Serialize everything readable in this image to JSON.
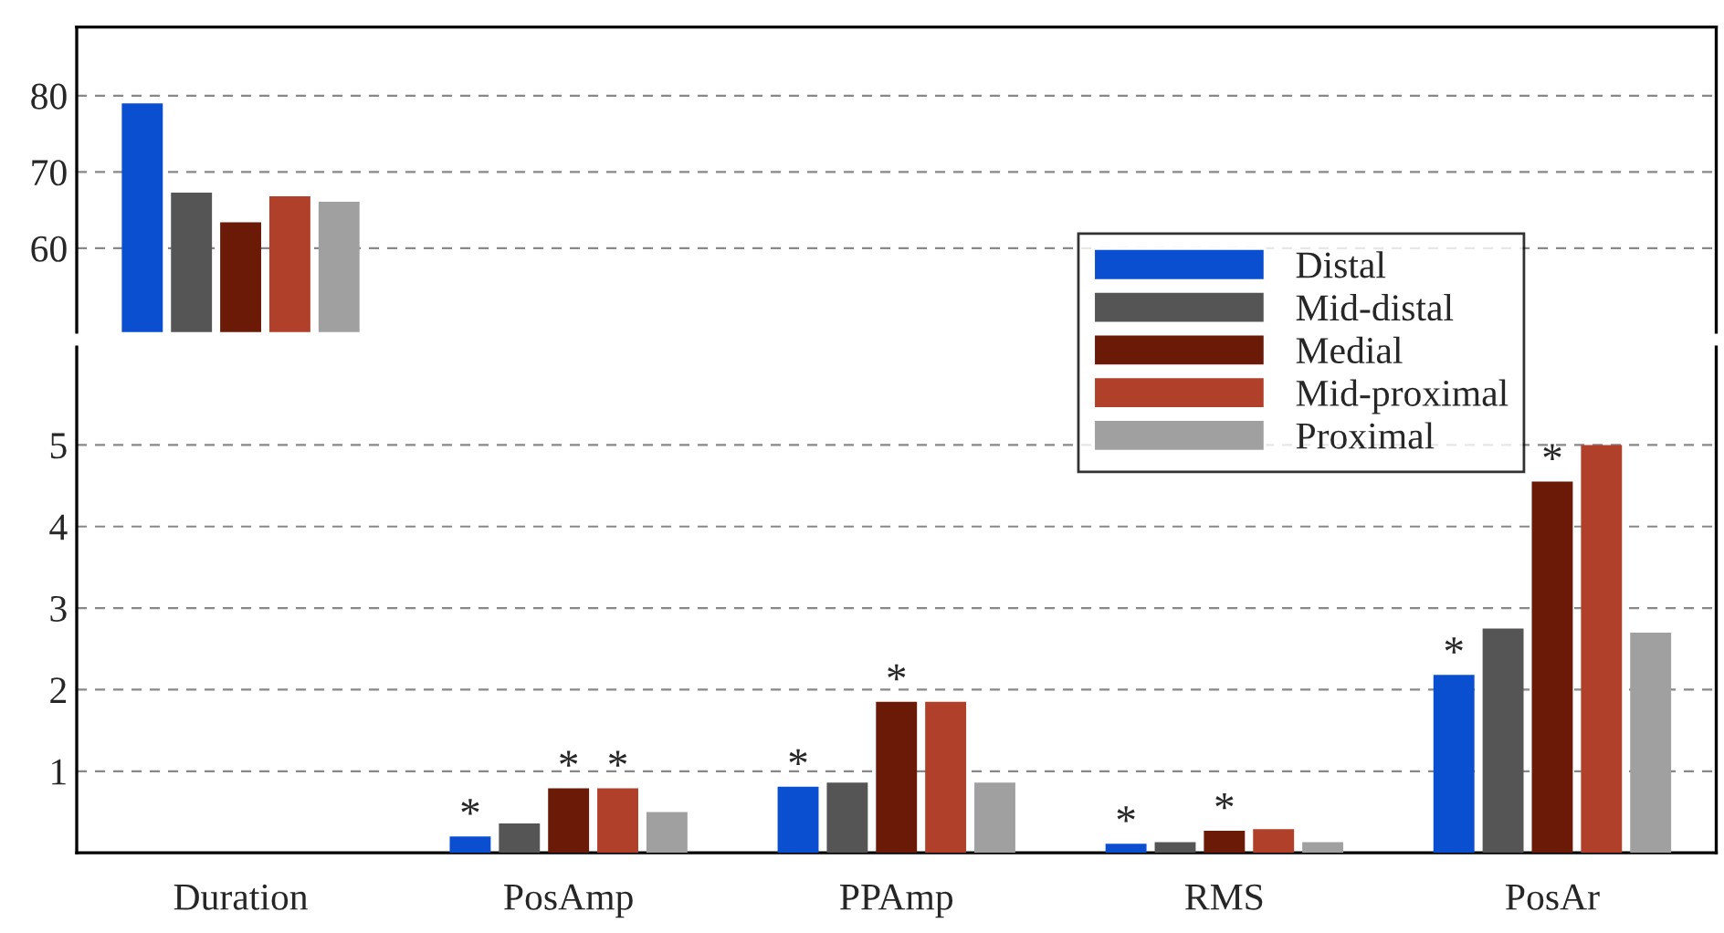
{
  "chart_data": [
    {
      "type": "bar",
      "ylim": [
        49,
        89
      ],
      "yticks": [
        60,
        70,
        80
      ],
      "grid": "y",
      "tick_labels": "y",
      "series": [
        {
          "color": "#0a4fd0",
          "values": [
            79,
            null,
            null,
            null,
            null
          ]
        },
        {
          "color": "#555555",
          "values": [
            67.3,
            null,
            null,
            null,
            null
          ]
        },
        {
          "color": "#6b1a08",
          "values": [
            63.4,
            null,
            null,
            null,
            null
          ]
        },
        {
          "color": "#b0402a",
          "values": [
            66.8,
            null,
            null,
            null,
            null
          ]
        },
        {
          "color": "#a0a0a0",
          "values": [
            66.1,
            null,
            null,
            null,
            null
          ]
        }
      ]
    },
    {
      "type": "bar",
      "categories": [
        "Duration",
        "PosAmp",
        "PPAmp",
        "RMS",
        "PosAr"
      ],
      "ylim": [
        0,
        6.2
      ],
      "yticks": [
        1,
        2,
        3,
        4,
        5
      ],
      "grid": "y",
      "legend": "right",
      "series": [
        {
          "name": "Distal",
          "color": "#0a4fd0",
          "values": [
            null,
            0.2,
            0.81,
            0.11,
            2.18
          ],
          "value_labels": [
            null,
            "*",
            "*",
            "*",
            "*"
          ]
        },
        {
          "name": "Mid-distal",
          "color": "#555555",
          "values": [
            null,
            0.36,
            0.86,
            0.13,
            2.75
          ]
        },
        {
          "name": "Medial",
          "color": "#6b1a08",
          "values": [
            null,
            0.79,
            1.85,
            0.27,
            4.55
          ],
          "value_labels": [
            null,
            "*",
            "*",
            "*",
            "*"
          ]
        },
        {
          "name": "Mid-proximal",
          "color": "#b0402a",
          "values": [
            null,
            0.79,
            1.85,
            0.29,
            5.0
          ],
          "value_labels": [
            null,
            "*",
            null,
            null,
            null
          ]
        },
        {
          "name": "Proximal",
          "color": "#a0a0a0",
          "values": [
            null,
            0.5,
            0.86,
            0.13,
            2.7
          ]
        }
      ]
    }
  ]
}
